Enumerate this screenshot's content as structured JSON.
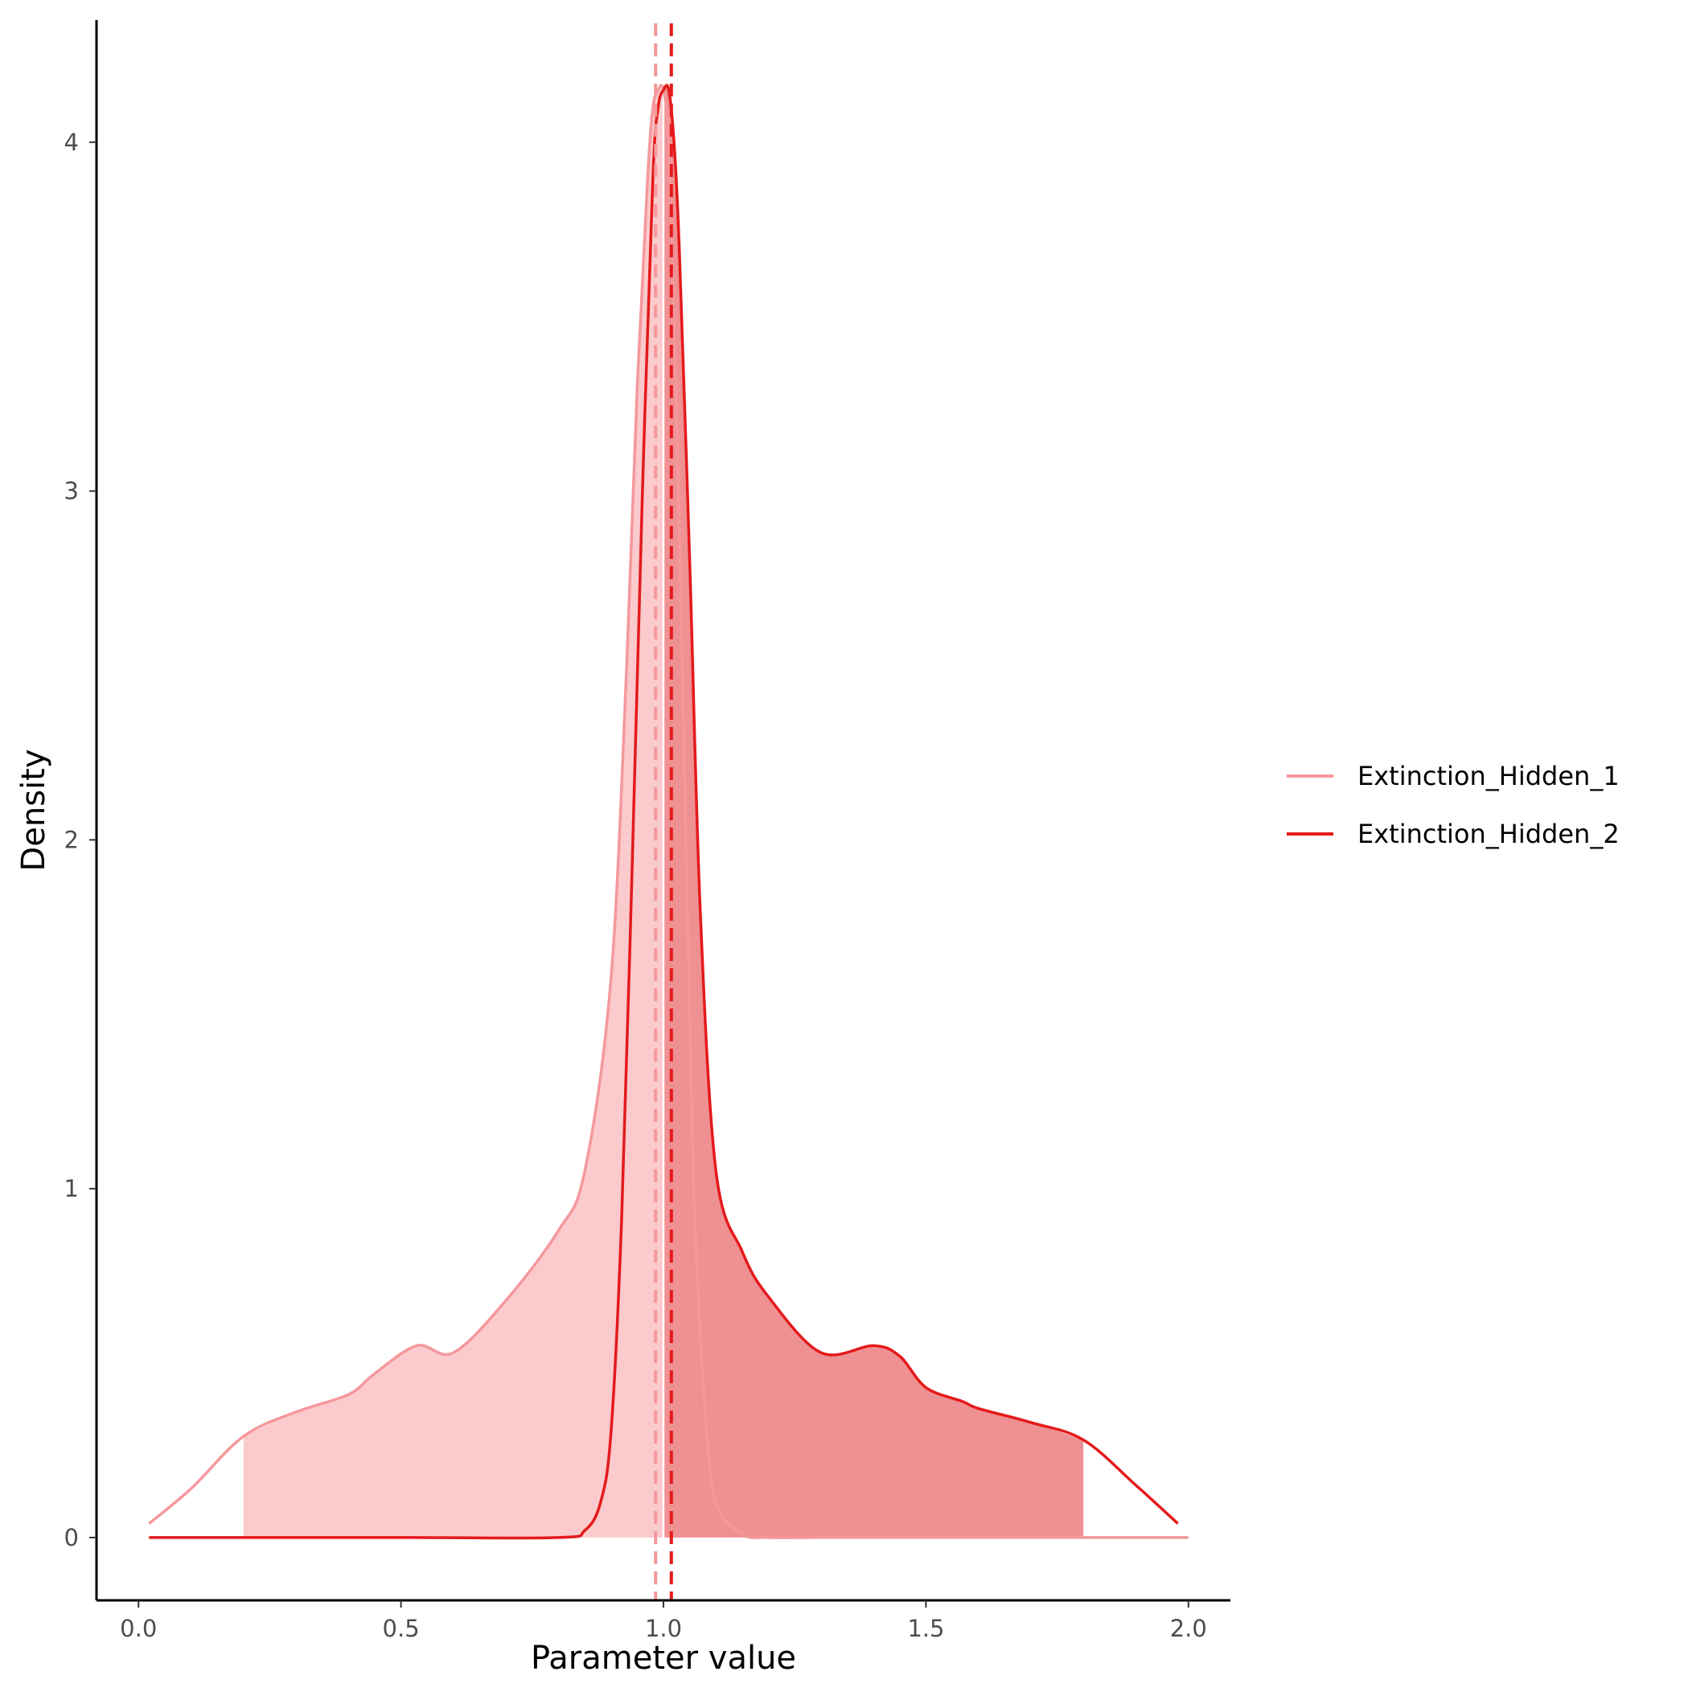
{
  "chart_data": {
    "type": "area",
    "title": "",
    "xlabel": "Parameter value",
    "ylabel": "Density",
    "xlim": [
      -0.08,
      2.08
    ],
    "ylim": [
      -0.18,
      4.35
    ],
    "x_ticks": [
      0.0,
      0.5,
      1.0,
      1.5,
      2.0
    ],
    "x_tick_labels": [
      "0.0",
      "0.5",
      "1.0",
      "1.5",
      "2.0"
    ],
    "y_ticks": [
      0,
      1,
      2,
      3,
      4
    ],
    "y_tick_labels": [
      "0",
      "1",
      "2",
      "3",
      "4"
    ],
    "grid": false,
    "legend_position": "right",
    "series": [
      {
        "name": "Extinction_Hidden_1",
        "color": "#f4989c",
        "fill_color": "#f9b8bb",
        "x": [
          0.02,
          0.1,
          0.2,
          0.3,
          0.4,
          0.45,
          0.53,
          0.6,
          0.7,
          0.8,
          0.85,
          0.9,
          0.93,
          0.95,
          0.97,
          0.98,
          0.99,
          1.0,
          1.01,
          1.02,
          1.03,
          1.04,
          1.05,
          1.06,
          1.08,
          1.1,
          1.15,
          1.2,
          1.3,
          1.4,
          1.5,
          1.6,
          1.7,
          1.8,
          1.9,
          2.0
        ],
        "y": [
          0.04,
          0.14,
          0.29,
          0.36,
          0.41,
          0.47,
          0.55,
          0.53,
          0.68,
          0.88,
          1.05,
          1.6,
          2.5,
          3.3,
          3.9,
          4.1,
          4.15,
          4.15,
          4.0,
          3.5,
          2.9,
          2.2,
          1.5,
          0.9,
          0.35,
          0.1,
          0.01,
          0.0,
          0.0,
          0.0,
          0.0,
          0.0,
          0.0,
          0.0,
          0.0,
          0.0
        ],
        "shade_from": 0.2,
        "shade_to": 1.0,
        "mean_line": 0.985
      },
      {
        "name": "Extinction_Hidden_2",
        "color": "#e41a1c",
        "fill_color": "#ea6b6e",
        "x": [
          0.02,
          0.5,
          0.8,
          0.85,
          0.88,
          0.9,
          0.92,
          0.94,
          0.96,
          0.98,
          0.99,
          1.0,
          1.01,
          1.02,
          1.03,
          1.05,
          1.07,
          1.1,
          1.15,
          1.2,
          1.3,
          1.4,
          1.45,
          1.5,
          1.57,
          1.6,
          1.7,
          1.8,
          1.9,
          1.98
        ],
        "y": [
          0.0,
          0.0,
          0.0,
          0.02,
          0.1,
          0.3,
          0.9,
          1.9,
          3.0,
          3.9,
          4.1,
          4.15,
          4.15,
          4.0,
          3.7,
          2.8,
          1.8,
          1.05,
          0.82,
          0.69,
          0.53,
          0.55,
          0.52,
          0.43,
          0.39,
          0.37,
          0.33,
          0.28,
          0.15,
          0.04
        ],
        "shade_from": 1.0,
        "shade_to": 1.8,
        "mean_line": 1.015
      }
    ]
  }
}
